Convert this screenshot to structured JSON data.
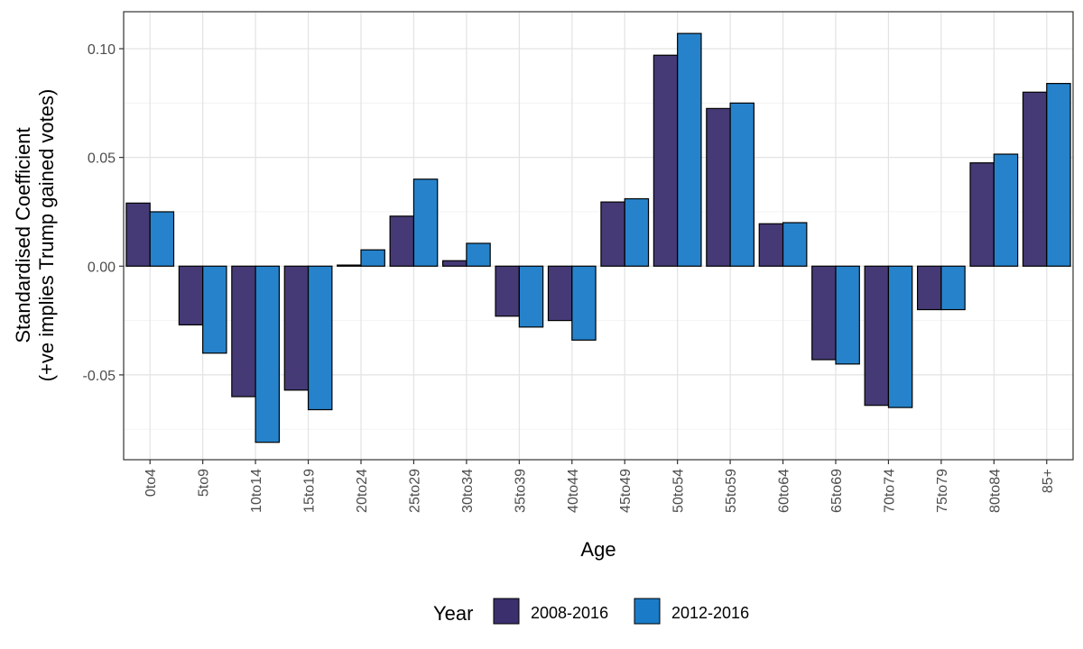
{
  "chart_data": {
    "type": "bar",
    "xlabel": "Age",
    "ylabel_line1": "Standardised Coefficient",
    "ylabel_line2": "(+ve implies Trump gained votes)",
    "categories": [
      "0to4",
      "5to9",
      "10to14",
      "15to19",
      "20to24",
      "25to29",
      "30to34",
      "35to39",
      "40to44",
      "45to49",
      "50to54",
      "55to59",
      "60to64",
      "65to69",
      "70to74",
      "75to79",
      "80to84",
      "85+"
    ],
    "series": [
      {
        "name": "2008-2016",
        "color": "#3b2f6e",
        "values": [
          0.029,
          -0.027,
          -0.06,
          -0.057,
          0.0005,
          0.023,
          0.0025,
          -0.023,
          -0.025,
          0.0295,
          0.097,
          0.0725,
          0.0195,
          -0.043,
          -0.064,
          -0.02,
          0.0475,
          0.08
        ]
      },
      {
        "name": "2012-2016",
        "color": "#1a7cc8",
        "values": [
          0.025,
          -0.04,
          -0.081,
          -0.066,
          0.0075,
          0.04,
          0.0105,
          -0.028,
          -0.034,
          0.031,
          0.107,
          0.075,
          0.02,
          -0.045,
          -0.065,
          -0.02,
          0.0515,
          0.084
        ]
      }
    ],
    "ylim": [
      -0.089,
      0.117
    ],
    "yticks": [
      -0.05,
      0.0,
      0.05,
      0.1
    ],
    "ytick_labels": [
      "-0.05",
      "0.00",
      "0.05",
      "0.10"
    ],
    "grid": true,
    "legend": {
      "title": "Year",
      "position": "bottom"
    }
  }
}
